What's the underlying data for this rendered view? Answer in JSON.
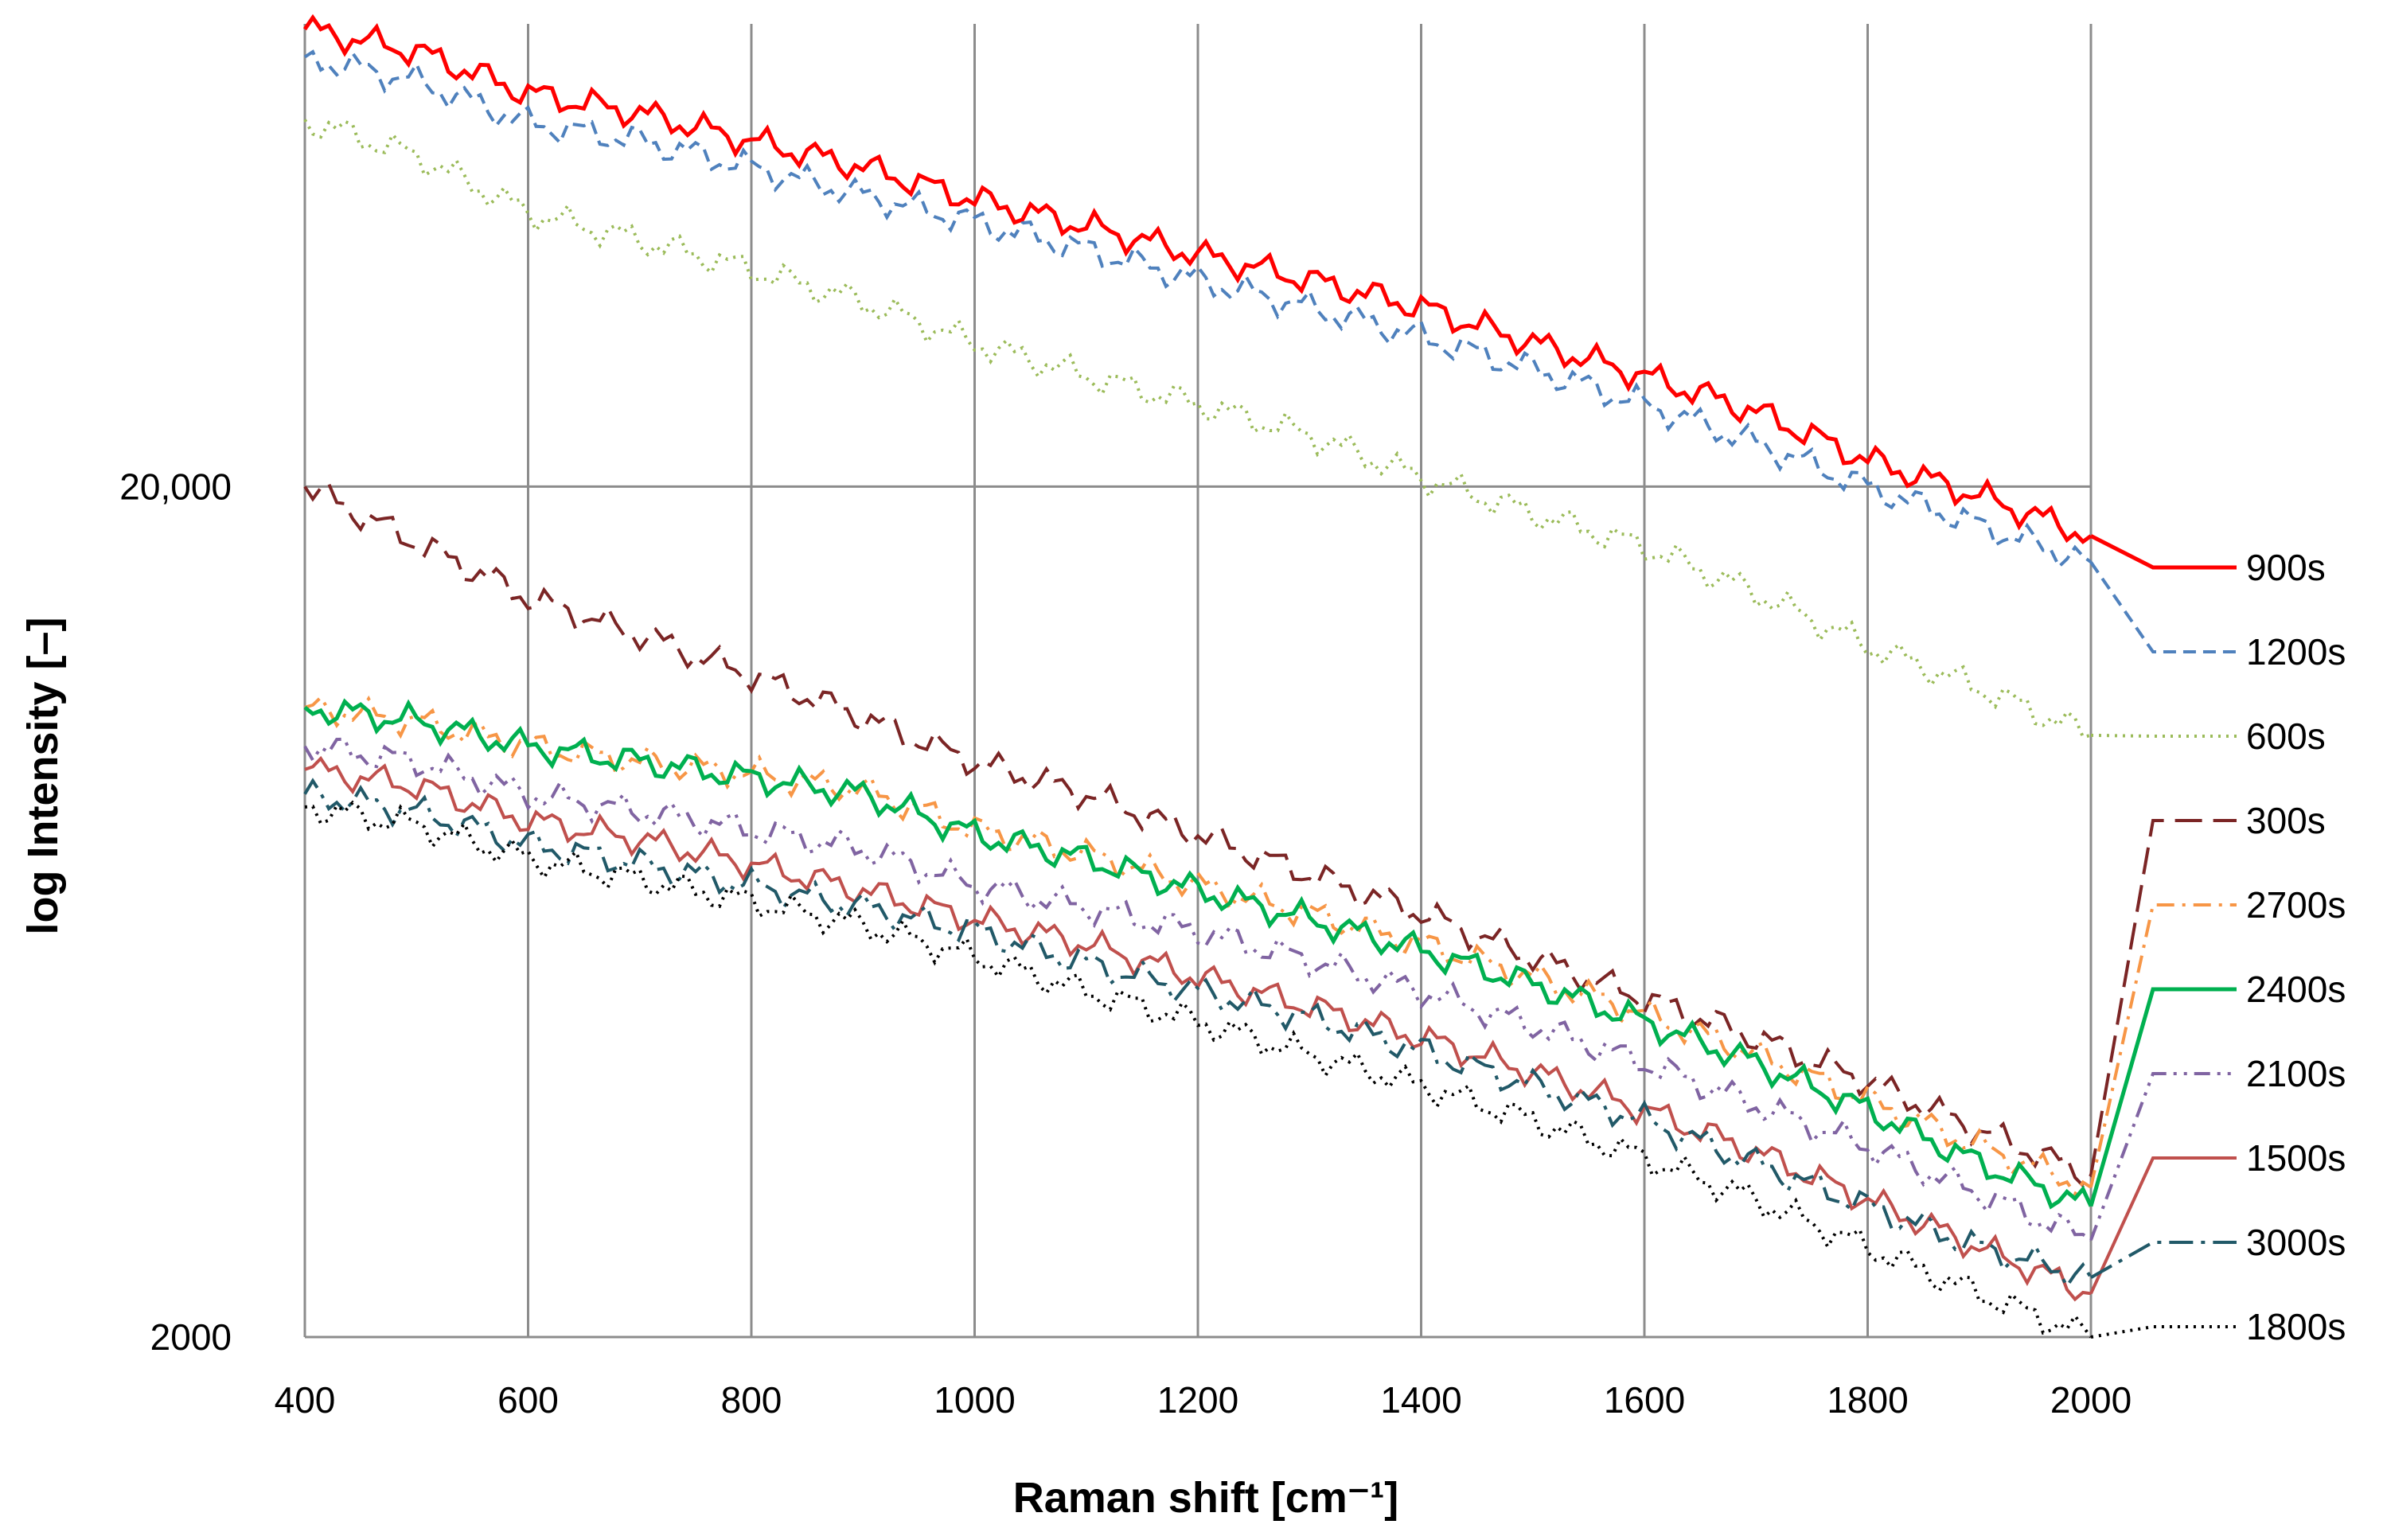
{
  "chart_data": {
    "type": "line",
    "title": "",
    "xlabel": "Raman shift [cm⁻¹]",
    "ylabel": "log Intensity [–]",
    "xlim": [
      400,
      2000
    ],
    "ylim": [
      2000,
      70000
    ],
    "yscale": "log",
    "grid": "vertical lines and major horizontal line",
    "x_ticks": [
      "400",
      "600",
      "800",
      "1000",
      "1200",
      "1400",
      "1600",
      "1800",
      "2000"
    ],
    "y_ticks": [
      {
        "value": 20000,
        "label": "20,000"
      },
      {
        "value": 2000,
        "label": "2000"
      }
    ],
    "x": [
      400,
      500,
      600,
      700,
      800,
      900,
      1000,
      1100,
      1200,
      1300,
      1400,
      1500,
      1600,
      1700,
      1800,
      1900,
      2000
    ],
    "series": [
      {
        "name": "900s",
        "color": "#ff0000",
        "dash": "solid",
        "width": 5,
        "values": [
          69000,
          65000,
          58000,
          55000,
          51000,
          47500,
          43500,
          40500,
          37500,
          35000,
          32500,
          29500,
          27000,
          24500,
          21500,
          19500,
          17500
        ]
      },
      {
        "name": "1200s",
        "color": "#4f81bd",
        "dash": "dashed",
        "width": 4,
        "values": [
          64000,
          60000,
          53500,
          51000,
          47500,
          44000,
          41000,
          38000,
          35000,
          32500,
          30000,
          27500,
          25000,
          22500,
          20000,
          18000,
          16300
        ]
      },
      {
        "name": "600s",
        "color": "#9bbb59",
        "dash": "dotted",
        "width": 4,
        "values": [
          54000,
          49000,
          42000,
          39000,
          36000,
          33000,
          29500,
          27000,
          25000,
          23000,
          20500,
          18600,
          17000,
          15000,
          13000,
          11600,
          10200
        ]
      },
      {
        "name": "300s",
        "color": "#7b2525",
        "dash": "longdash",
        "width": 4,
        "values": [
          20000,
          17200,
          14800,
          13400,
          12000,
          10700,
          9500,
          8700,
          7800,
          7000,
          6300,
          5600,
          5000,
          4500,
          4000,
          3500,
          3100
        ]
      },
      {
        "name": "2700s",
        "color": "#f79646",
        "dash": "dashdot",
        "width": 4,
        "values": [
          11000,
          10600,
          9900,
          9500,
          9200,
          8800,
          7900,
          7400,
          6800,
          6300,
          5800,
          5300,
          4800,
          4300,
          3800,
          3350,
          3000
        ]
      },
      {
        "name": "2400s",
        "color": "#00b050",
        "dash": "solid",
        "width": 5,
        "values": [
          11000,
          10600,
          9900,
          9500,
          9100,
          8700,
          7800,
          7300,
          6700,
          6200,
          5700,
          5200,
          4700,
          4200,
          3700,
          3200,
          2850
        ]
      },
      {
        "name": "2100s",
        "color": "#8064a2",
        "dash": "dashdotdot",
        "width": 4,
        "values": [
          9900,
          9500,
          8700,
          8300,
          7900,
          7500,
          6800,
          6400,
          6000,
          5550,
          5100,
          4650,
          4200,
          3750,
          3350,
          2950,
          2600
        ]
      },
      {
        "name": "1500s",
        "color": "#c0504d",
        "dash": "solid",
        "width": 4,
        "values": [
          9300,
          8900,
          8100,
          7700,
          7200,
          6700,
          6200,
          5800,
          5300,
          4900,
          4500,
          4100,
          3700,
          3300,
          2900,
          2550,
          2250
        ]
      },
      {
        "name": "3000s",
        "color": "#215968",
        "dash": "longdashdot",
        "width": 4,
        "values": [
          8700,
          8300,
          7600,
          7200,
          6800,
          6400,
          6000,
          5500,
          5100,
          4750,
          4350,
          3950,
          3600,
          3200,
          2850,
          2550,
          2350
        ]
      },
      {
        "name": "1800s",
        "color": "#000000",
        "dash": "dotted",
        "width": 4,
        "values": [
          8400,
          8000,
          7300,
          6900,
          6500,
          6100,
          5600,
          5100,
          4700,
          4300,
          3950,
          3600,
          3250,
          2900,
          2550,
          2250,
          2000
        ]
      }
    ],
    "legend": {
      "placement": "right",
      "style": "leader lines from series ends to labels",
      "order": [
        "900s",
        "1200s",
        "600s",
        "300s",
        "2700s",
        "2400s",
        "2100s",
        "1500s",
        "3000s",
        "1800s"
      ]
    }
  }
}
